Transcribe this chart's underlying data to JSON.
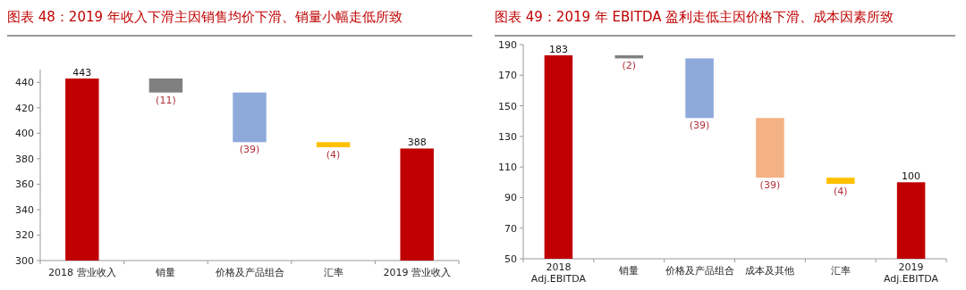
{
  "chart_data": [
    {
      "type": "bar",
      "title": "图表 48：2019 年收入下滑主因销售均价下滑、销量小幅走低所致",
      "categories": [
        "2018 营业收入",
        "销量",
        "价格及产品组合",
        "汇率",
        "2019 营业收入"
      ],
      "values": [
        443,
        -11,
        -39,
        -4,
        388
      ],
      "base": [
        null,
        443,
        432,
        393,
        null
      ],
      "colors": [
        "#c00000",
        "#808080",
        "#8eaadb",
        "#ffc000",
        "#c00000"
      ],
      "value_labels": [
        "443",
        "(11)",
        "(39)",
        "(4)",
        "388"
      ],
      "ylim": [
        300,
        450
      ],
      "yticks": [
        300,
        320,
        340,
        360,
        380,
        400,
        420,
        440
      ]
    },
    {
      "type": "bar",
      "title": "图表 49：2019 年 EBITDA 盈利走低主因价格下滑、成本因素所致",
      "categories": [
        "2018 Adj.EBITDA",
        "销量",
        "价格及产品组合",
        "成本及其他",
        "汇率",
        "2019 Adj.EBITDA"
      ],
      "values": [
        183,
        -2,
        -39,
        -39,
        -4,
        100
      ],
      "base": [
        null,
        183,
        181,
        142,
        103,
        null
      ],
      "colors": [
        "#c00000",
        "#808080",
        "#8eaadb",
        "#f4b183",
        "#ffc000",
        "#c00000"
      ],
      "value_labels": [
        "183",
        "(2)",
        "(39)",
        "(39)",
        "(4)",
        "100"
      ],
      "ylim": [
        50,
        190
      ],
      "yticks": [
        50,
        70,
        90,
        110,
        130,
        150,
        170,
        190
      ]
    }
  ]
}
